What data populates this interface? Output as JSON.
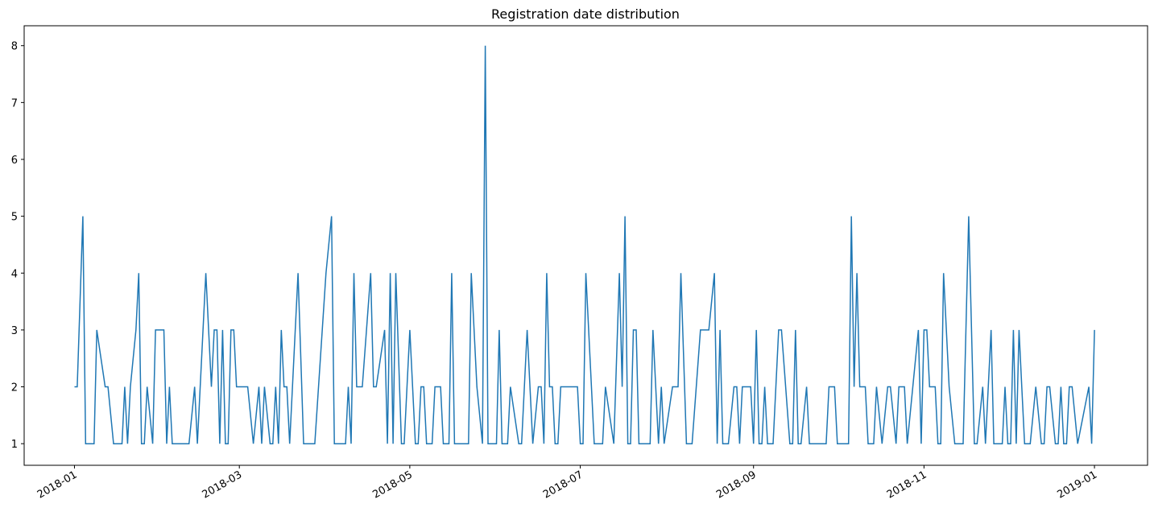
{
  "chart_data": {
    "type": "line",
    "title": "Registration date distribution",
    "x": [
      0,
      1,
      3,
      4,
      7,
      8,
      11,
      12,
      14,
      17,
      18,
      19,
      20,
      22,
      23,
      24,
      25,
      26,
      28,
      29,
      32,
      33,
      34,
      35,
      41,
      43,
      44,
      47,
      49,
      50,
      51,
      52,
      53,
      54,
      55,
      56,
      57,
      58,
      62,
      64,
      66,
      67,
      68,
      70,
      71,
      72,
      73,
      74,
      75,
      76,
      77,
      80,
      82,
      86,
      90,
      92,
      93,
      97,
      98,
      99,
      100,
      101,
      103,
      106,
      107,
      108,
      111,
      112,
      113,
      114,
      115,
      117,
      118,
      120,
      122,
      123,
      124,
      125,
      126,
      128,
      129,
      131,
      132,
      134,
      135,
      136,
      141,
      142,
      144,
      146,
      147,
      148,
      151,
      152,
      153,
      155,
      156,
      159,
      160,
      162,
      164,
      166,
      167,
      168,
      169,
      170,
      171,
      172,
      173,
      174,
      180,
      181,
      182,
      183,
      186,
      189,
      190,
      193,
      195,
      196,
      197,
      198,
      199,
      200,
      201,
      202,
      206,
      207,
      209,
      210,
      211,
      214,
      216,
      217,
      219,
      221,
      224,
      227,
      229,
      230,
      231,
      232,
      234,
      236,
      237,
      238,
      239,
      242,
      243,
      244,
      245,
      246,
      247,
      248,
      250,
      252,
      253,
      256,
      257,
      258,
      259,
      260,
      262,
      263,
      269,
      270,
      272,
      273,
      277,
      278,
      279,
      280,
      281,
      283,
      284,
      286,
      287,
      289,
      291,
      292,
      294,
      295,
      297,
      298,
      302,
      303,
      304,
      305,
      306,
      308,
      309,
      310,
      311,
      313,
      315,
      318,
      320,
      322,
      323,
      325,
      326,
      328,
      329,
      332,
      333,
      334,
      335,
      336,
      337,
      338,
      339,
      340,
      342,
      344,
      346,
      347,
      348,
      349,
      351,
      352,
      353,
      354,
      355,
      356,
      357,
      359,
      363,
      364,
      365
    ],
    "series": [
      {
        "color": "#1f77b4",
        "values": [
          2,
          2,
          5,
          1,
          1,
          3,
          2,
          2,
          1,
          1,
          2,
          1,
          2,
          3,
          4,
          1,
          1,
          2,
          1,
          3,
          3,
          1,
          2,
          1,
          1,
          2,
          1,
          4,
          2,
          3,
          3,
          1,
          3,
          1,
          1,
          3,
          3,
          2,
          2,
          1,
          2,
          1,
          2,
          1,
          1,
          2,
          1,
          3,
          2,
          2,
          1,
          4,
          1,
          1,
          4,
          5,
          1,
          1,
          2,
          1,
          4,
          2,
          2,
          4,
          2,
          2,
          3,
          1,
          4,
          1,
          4,
          1,
          1,
          3,
          1,
          1,
          2,
          2,
          1,
          1,
          2,
          2,
          1,
          1,
          4,
          1,
          1,
          4,
          2,
          1,
          8,
          1,
          1,
          3,
          1,
          1,
          2,
          1,
          1,
          3,
          1,
          2,
          2,
          1,
          4,
          2,
          2,
          1,
          1,
          2,
          2,
          1,
          1,
          4,
          1,
          1,
          2,
          1,
          4,
          2,
          5,
          1,
          1,
          3,
          3,
          1,
          1,
          3,
          1,
          2,
          1,
          2,
          2,
          4,
          1,
          1,
          3,
          3,
          4,
          1,
          3,
          1,
          1,
          2,
          2,
          1,
          2,
          2,
          1,
          3,
          1,
          1,
          2,
          1,
          1,
          3,
          3,
          1,
          1,
          3,
          1,
          1,
          2,
          1,
          1,
          2,
          2,
          1,
          1,
          5,
          2,
          4,
          2,
          2,
          1,
          1,
          2,
          1,
          2,
          2,
          1,
          2,
          2,
          1,
          3,
          1,
          3,
          3,
          2,
          2,
          1,
          1,
          4,
          2,
          1,
          1,
          5,
          1,
          1,
          2,
          1,
          3,
          1,
          1,
          2,
          1,
          1,
          3,
          1,
          3,
          2,
          1,
          1,
          2,
          1,
          1,
          2,
          2,
          1,
          1,
          2,
          1,
          1,
          2,
          2,
          1,
          2,
          1,
          3
        ]
      }
    ],
    "xlim": [
      -18,
      384
    ],
    "xticks": [
      {
        "value": 0,
        "label": "2018-01"
      },
      {
        "value": 59,
        "label": "2018-03"
      },
      {
        "value": 120,
        "label": "2018-05"
      },
      {
        "value": 181,
        "label": "2018-07"
      },
      {
        "value": 243,
        "label": "2018-09"
      },
      {
        "value": 304,
        "label": "2018-11"
      },
      {
        "value": 365,
        "label": "2019-01"
      }
    ],
    "ylim": [
      0.62,
      8.35
    ],
    "yticks": [
      1,
      2,
      3,
      4,
      5,
      6,
      7,
      8
    ]
  }
}
